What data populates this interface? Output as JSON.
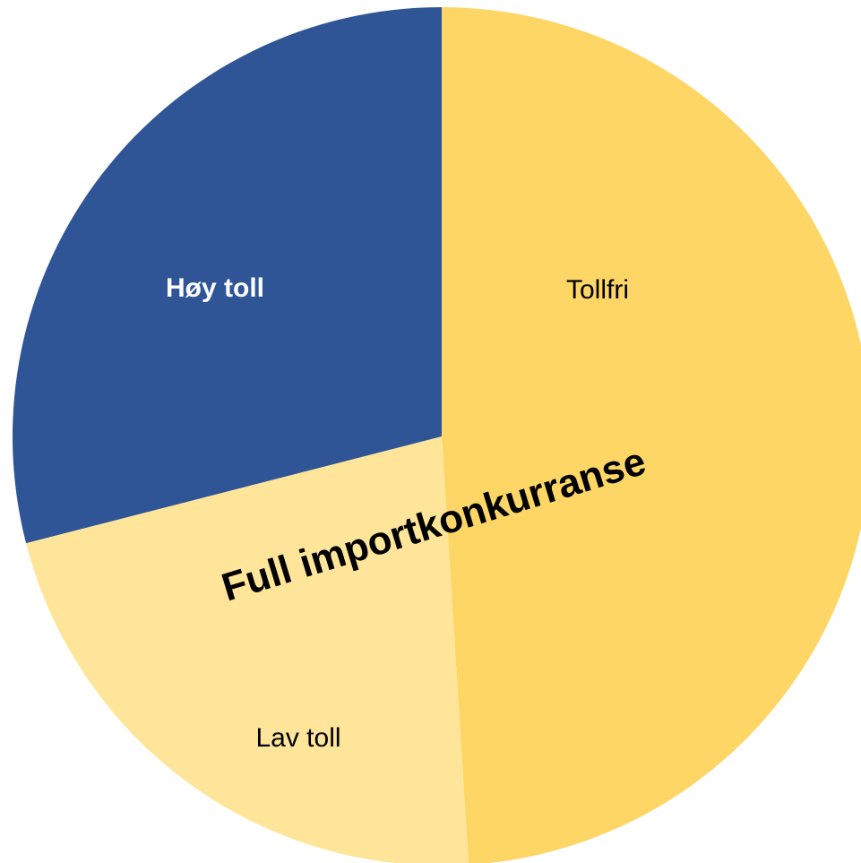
{
  "chart_data": {
    "type": "pie",
    "categories": [
      "Tollfri",
      "Lav toll",
      "Høy toll"
    ],
    "values": [
      49,
      22,
      29
    ],
    "colors": [
      "#fdd665",
      "#fee599",
      "#2f5597"
    ],
    "label_colors": [
      "#000000",
      "#000000",
      "#ffffff"
    ],
    "annotation": "Full importkonkurranse"
  }
}
